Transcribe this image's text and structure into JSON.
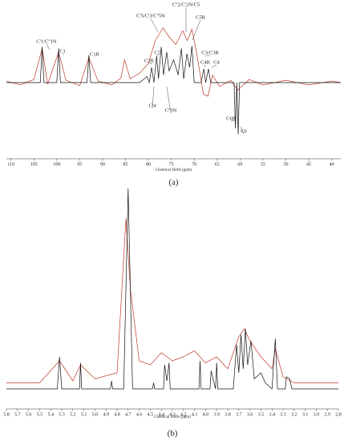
{
  "chart_data": [
    {
      "type": "line",
      "caption": "(a)",
      "xlabel": "Chemical Shifts (ppm)",
      "xlim": [
        111,
        38
      ],
      "ylim": [
        -100,
        100
      ],
      "xticks": [
        110,
        105,
        100,
        95,
        90,
        85,
        80,
        75,
        70,
        65,
        60,
        55,
        50,
        45,
        40
      ],
      "annotations": [
        "C'1/C''1N",
        "C1",
        "C1R",
        "C'5/C'3/C''5N",
        "C2R",
        "C2",
        "C'4",
        "C''3N",
        "C''2/C'2N/C5",
        "C5R",
        "C3/C3R",
        "C4R",
        "C4",
        "C6R",
        "C6"
      ],
      "series": [
        {
          "color": "#111111",
          "x": [
            111,
            103.6,
            103.2,
            102.8,
            100,
            99.6,
            99.2,
            93.4,
            93,
            92.6,
            82,
            81.5,
            80.3,
            79.8,
            79.3,
            78.8,
            78.2,
            77.8,
            77.2,
            76.7,
            76,
            75.5,
            74.5,
            73.5,
            72.8,
            72.3,
            71.6,
            71,
            70.5,
            70,
            68.5,
            67.9,
            67.5,
            66.9,
            66.4,
            61.3,
            61,
            60.7,
            60.4,
            60.1,
            38
          ],
          "values": [
            0,
            0,
            47,
            0,
            0,
            45,
            0,
            0,
            36,
            0,
            0,
            2,
            8,
            0,
            20,
            0,
            35,
            5,
            47,
            10,
            40,
            15,
            30,
            10,
            45,
            5,
            38,
            20,
            48,
            0,
            0,
            18,
            0,
            18,
            0,
            0,
            -60,
            0,
            -68,
            0,
            0
          ]
        },
        {
          "color": "#c0392b",
          "x": [
            111,
            108,
            105,
            103.2,
            102,
            99.6,
            98,
            95,
            93,
            91,
            88,
            86,
            85.2,
            84,
            82,
            80,
            78.5,
            76.8,
            75.5,
            74,
            72.5,
            71.5,
            70.5,
            69.5,
            68,
            67,
            66,
            64.5,
            62,
            60.5,
            58,
            55,
            50,
            45,
            40,
            38
          ],
          "values": [
            2,
            -3,
            4,
            45,
            -2,
            40,
            3,
            -4,
            33,
            2,
            -3,
            6,
            30,
            5,
            12,
            25,
            55,
            72,
            60,
            50,
            68,
            55,
            70,
            40,
            -15,
            -18,
            10,
            -5,
            3,
            -10,
            4,
            -3,
            3,
            -3,
            2,
            0
          ]
        }
      ]
    },
    {
      "type": "line",
      "caption": "(b)",
      "xlabel": "Chemical Shifts (ppm)",
      "xlim": [
        5.8,
        2.8
      ],
      "ylim": [
        -10,
        100
      ],
      "xticks": [
        5.8,
        5.7,
        5.6,
        5.5,
        5.4,
        5.3,
        5.2,
        5.1,
        {
          "value": 5,
          "label": "5.0"
        },
        4.9,
        4.8,
        4.7,
        4.6,
        4.5,
        4.4,
        4.3,
        4.2,
        4.1,
        {
          "value": 4,
          "label": "4.0"
        },
        3.9,
        3.8,
        3.7,
        3.6,
        3.5,
        3.4,
        3.3,
        3.2,
        3.1,
        {
          "value": 3,
          "label": "3.0"
        },
        2.9,
        2.8
      ],
      "series": [
        {
          "color": "#111111",
          "x": [
            5.8,
            5.34,
            5.32,
            5.3,
            5.14,
            5.13,
            5.12,
            4.86,
            4.85,
            4.84,
            4.74,
            4.7,
            4.66,
            4.48,
            4.47,
            4.46,
            4.38,
            4.37,
            4.35,
            4.33,
            4.32,
            4.06,
            4.05,
            4.04,
            3.96,
            3.95,
            3.91,
            3.9,
            3.89,
            3.75,
            3.72,
            3.7,
            3.68,
            3.66,
            3.64,
            3.62,
            3.59,
            3.56,
            3.5,
            3.46,
            3.4,
            3.37,
            3.35,
            3.28,
            3.27,
            3.24,
            3.22,
            2.8
          ],
          "values": [
            0,
            0,
            16,
            0,
            0,
            13,
            0,
            0,
            4,
            0,
            0,
            100,
            0,
            0,
            3,
            0,
            0,
            12,
            4,
            13,
            0,
            0,
            14,
            0,
            0,
            9,
            0,
            13,
            0,
            0,
            22,
            8,
            27,
            10,
            30,
            12,
            24,
            5,
            8,
            3,
            0,
            25,
            0,
            0,
            6,
            5,
            0,
            0
          ]
        },
        {
          "color": "#c0392b",
          "x": [
            5.8,
            5.5,
            5.32,
            5.2,
            5.13,
            5,
            4.8,
            4.72,
            4.68,
            4.6,
            4.5,
            4.4,
            4.3,
            4.2,
            4.1,
            4,
            3.9,
            3.8,
            3.7,
            3.65,
            3.6,
            3.5,
            3.4,
            3.37,
            3.3,
            3.2,
            2.8
          ],
          "values": [
            3,
            3,
            14,
            4,
            12,
            5,
            8,
            85,
            50,
            14,
            12,
            18,
            14,
            16,
            19,
            13,
            16,
            10,
            26,
            30,
            24,
            16,
            10,
            20,
            6,
            3,
            3
          ]
        }
      ]
    }
  ]
}
